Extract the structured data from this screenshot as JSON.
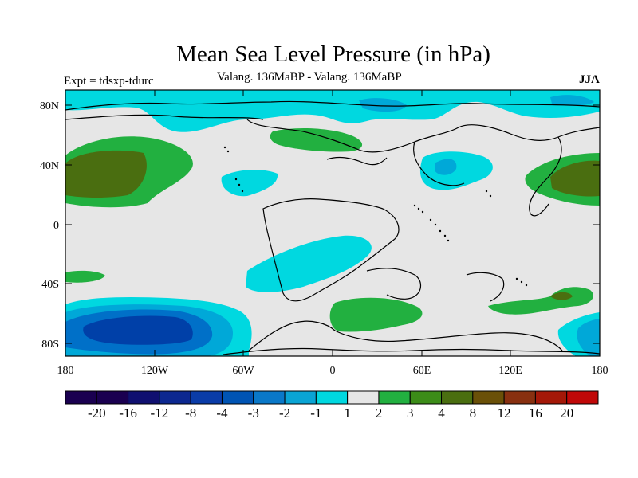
{
  "title": "Mean Sea Level Pressure (in hPa)",
  "subtitle": "Valang. 136MaBP - Valang.  136MaBP",
  "left_label": "Expt = tdsxp-tdurc",
  "right_label": "JJA",
  "map": {
    "lat_ticks": [
      "80N",
      "40N",
      "0",
      "40S",
      "80S"
    ],
    "lon_ticks": [
      "180",
      "120W",
      "60W",
      "0",
      "60E",
      "120E",
      "180"
    ],
    "colors": {
      "background_land": "#e6e6e6",
      "ocean_outline": "#000000",
      "neg_light": "#00d8e0",
      "neg_mid": "#00a8d8",
      "neg_strong": "#0070c8",
      "neg_deep": "#0040a8",
      "pos_light": "#22b040",
      "pos_mid": "#3c8c18",
      "pos_strong": "#4a6e10"
    }
  },
  "colorbar": {
    "labels": [
      "-20",
      "-16",
      "-12",
      "-8",
      "-4",
      "-3",
      "-2",
      "-1",
      "1",
      "2",
      "3",
      "4",
      "8",
      "12",
      "16",
      "20"
    ],
    "colors": [
      "#1a0050",
      "#101070",
      "#0c2890",
      "#0a3ca8",
      "#0054b4",
      "#0a78c8",
      "#0aa4d4",
      "#00d8e0",
      "#e6e6e6",
      "#22b040",
      "#3c8c18",
      "#4a6e10",
      "#6a5008",
      "#883010",
      "#a41808",
      "#c00808"
    ]
  }
}
